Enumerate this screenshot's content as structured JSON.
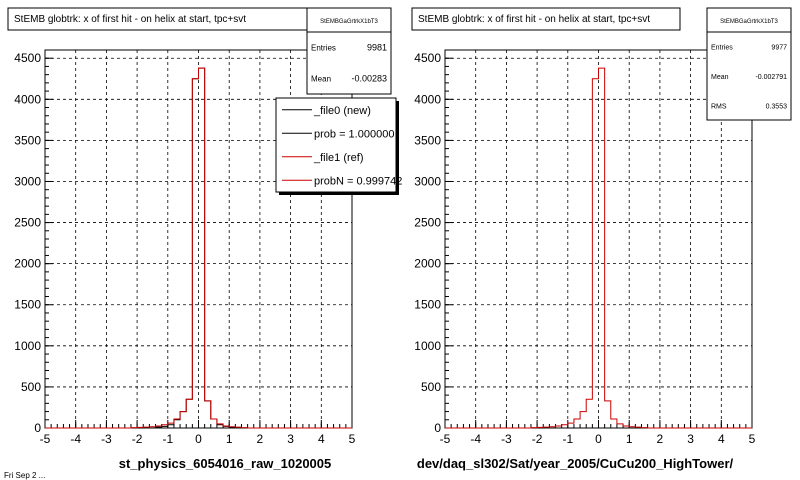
{
  "chart_data": [
    {
      "type": "bar",
      "title": "StEMB globtrk: x of first hit - on helix at start, tpc+svt",
      "xlabel": "st_physics_6054016_raw_1020005",
      "ylabel": "",
      "xlim": [
        -5,
        5
      ],
      "ylim": [
        0,
        4600
      ],
      "x_ticks": [
        "-5",
        "-4",
        "-3",
        "-2",
        "-1",
        "0",
        "1",
        "2",
        "3",
        "4",
        "5"
      ],
      "y_ticks": [
        "0",
        "500",
        "1000",
        "1500",
        "2000",
        "2500",
        "3000",
        "3500",
        "4000",
        "4500"
      ],
      "grid": true,
      "stats": {
        "name": "StEMBGaGrtrkX1bT3",
        "rows": [
          {
            "label": "Entries",
            "value": "9981"
          },
          {
            "label": "Mean",
            "value": "-0.00283"
          }
        ]
      },
      "legend": {
        "placement": "top-right",
        "entries": [
          {
            "label": "_file0 (new)",
            "color": "#000000"
          },
          {
            "label": "prob = 1.000000",
            "color": "#000000"
          },
          {
            "label": "_file1 (ref)",
            "color": "#cc0000"
          },
          {
            "label": "probN = 0.999742",
            "color": "#cc0000"
          }
        ]
      },
      "bin_width": 0.2,
      "series": [
        {
          "name": "_file0 (new)",
          "color": "#000000",
          "x": [
            -1.4,
            -1.2,
            -1.0,
            -0.8,
            -0.6,
            -0.4,
            -0.2,
            0.0,
            0.2,
            0.4,
            0.6,
            0.8,
            1.0
          ],
          "values": [
            10,
            20,
            40,
            100,
            200,
            350,
            4250,
            4380,
            330,
            110,
            40,
            20,
            10
          ]
        },
        {
          "name": "_file1 (ref)",
          "color": "#cc0000",
          "x": [
            -5.0,
            -4.8,
            -4.6,
            -4.4,
            -4.2,
            -4.0,
            -3.8,
            -3.6,
            -3.4,
            -3.2,
            -3.0,
            -2.8,
            -2.6,
            -2.4,
            -2.2,
            -2.0,
            -1.8,
            -1.6,
            -1.4,
            -1.2,
            -1.0,
            -0.8,
            -0.6,
            -0.4,
            -0.2,
            0.0,
            0.2,
            0.4,
            0.6,
            0.8,
            1.0,
            1.2,
            1.4,
            1.6,
            1.8,
            2.0,
            2.2,
            2.4,
            2.6,
            2.8,
            3.0,
            3.2,
            3.4,
            3.6,
            3.8,
            4.0,
            4.2,
            4.4,
            4.6,
            4.8
          ],
          "values": [
            0,
            0,
            0,
            0,
            0,
            0,
            0,
            0,
            0,
            0,
            0,
            0,
            0,
            0,
            5,
            8,
            10,
            15,
            25,
            40,
            60,
            110,
            200,
            350,
            4250,
            4380,
            330,
            110,
            50,
            25,
            15,
            10,
            5,
            0,
            0,
            0,
            0,
            0,
            0,
            0,
            0,
            0,
            0,
            0,
            0,
            0,
            0,
            0,
            0,
            0
          ]
        }
      ]
    },
    {
      "type": "bar",
      "title": "StEMB globtrk: x of first hit - on helix at start, tpc+svt",
      "xlabel": "dev/daq_sl302/Sat/year_2005/CuCu200_HighTower/",
      "ylabel": "",
      "xlim": [
        -5,
        5
      ],
      "ylim": [
        0,
        4600
      ],
      "x_ticks": [
        "-5",
        "-4",
        "-3",
        "-2",
        "-1",
        "0",
        "1",
        "2",
        "3",
        "4",
        "5"
      ],
      "y_ticks": [
        "0",
        "500",
        "1000",
        "1500",
        "2000",
        "2500",
        "3000",
        "3500",
        "4000",
        "4500"
      ],
      "grid": true,
      "stats": {
        "name": "StEMBGaGrtrkX1bT3",
        "rows": [
          {
            "label": "Entries",
            "value": "9977"
          },
          {
            "label": "Mean",
            "value": "-0.002791"
          },
          {
            "label": "RMS",
            "value": "0.3553"
          }
        ]
      },
      "bin_width": 0.2,
      "series": [
        {
          "name": "",
          "color": "#cc0000",
          "x": [
            -5.0,
            -4.8,
            -4.6,
            -4.4,
            -4.2,
            -4.0,
            -3.8,
            -3.6,
            -3.4,
            -3.2,
            -3.0,
            -2.8,
            -2.6,
            -2.4,
            -2.2,
            -2.0,
            -1.8,
            -1.6,
            -1.4,
            -1.2,
            -1.0,
            -0.8,
            -0.6,
            -0.4,
            -0.2,
            0.0,
            0.2,
            0.4,
            0.6,
            0.8,
            1.0,
            1.2,
            1.4,
            1.6,
            1.8,
            2.0,
            2.2,
            2.4,
            2.6,
            2.8,
            3.0,
            3.2,
            3.4,
            3.6,
            3.8,
            4.0,
            4.2,
            4.4,
            4.6,
            4.8
          ],
          "values": [
            0,
            0,
            0,
            0,
            0,
            0,
            0,
            0,
            0,
            0,
            0,
            0,
            0,
            0,
            5,
            8,
            10,
            15,
            25,
            40,
            60,
            110,
            200,
            350,
            4250,
            4380,
            330,
            110,
            50,
            25,
            15,
            10,
            5,
            0,
            0,
            0,
            0,
            0,
            0,
            0,
            0,
            0,
            0,
            0,
            0,
            0,
            0,
            0,
            0,
            0
          ]
        }
      ]
    }
  ],
  "footer_text": "Fri Sep 2 ..."
}
